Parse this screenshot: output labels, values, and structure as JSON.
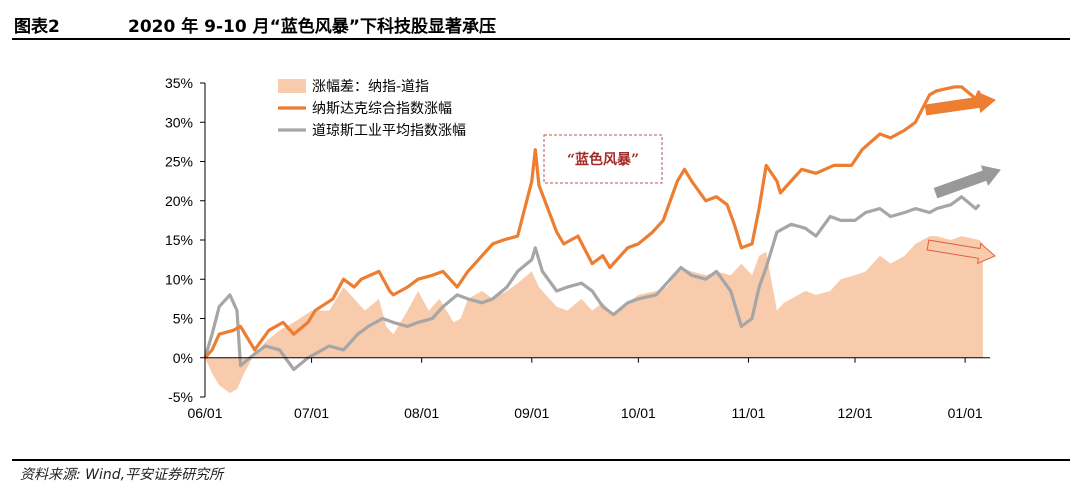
{
  "figure": {
    "number": "图表2",
    "title": "2020 年 9-10 月“蓝色风暴”下科技股显著承压",
    "source": "资料来源: Wind,平安证券研究所"
  },
  "colors": {
    "nasdaq": "#ED7D31",
    "dow": "#A6A6A6",
    "spread": "#F8CBAD",
    "annotation_border": "#C0504D",
    "annotation_text": "#A52A2A"
  },
  "chart_data": {
    "type": "line",
    "xlim": [
      "2020-06-01",
      "2021-01-08"
    ],
    "ylim": [
      -0.05,
      0.35
    ],
    "y_ticks": [
      -0.05,
      0.0,
      0.05,
      0.1,
      0.15,
      0.2,
      0.25,
      0.3,
      0.35
    ],
    "y_tick_labels": [
      "-5%",
      "0%",
      "5%",
      "10%",
      "15%",
      "20%",
      "25%",
      "30%",
      "35%"
    ],
    "x_ticks": [
      "2020-06-01",
      "2020-07-01",
      "2020-08-01",
      "2020-09-01",
      "2020-10-01",
      "2020-11-01",
      "2020-12-01",
      "2021-01-01"
    ],
    "x_tick_labels": [
      "06/01",
      "07/01",
      "08/01",
      "09/01",
      "10/01",
      "11/01",
      "12/01",
      "01/01"
    ],
    "legend": [
      "涨幅差：纳指-道指",
      "纳斯达克综合指数涨幅",
      "道琼斯工业平均指数涨幅"
    ],
    "annotation": "“蓝色风暴”",
    "series": [
      {
        "name": "涨幅差：纳指-道指",
        "kind": "area",
        "points": [
          [
            "2020-06-01",
            0.0
          ],
          [
            "2020-06-03",
            -0.02
          ],
          [
            "2020-06-05",
            -0.035
          ],
          [
            "2020-06-08",
            -0.045
          ],
          [
            "2020-06-10",
            -0.04
          ],
          [
            "2020-06-12",
            -0.02
          ],
          [
            "2020-06-15",
            0.005
          ],
          [
            "2020-06-18",
            0.02
          ],
          [
            "2020-06-22",
            0.035
          ],
          [
            "2020-06-26",
            0.045
          ],
          [
            "2020-07-01",
            0.06
          ],
          [
            "2020-07-06",
            0.06
          ],
          [
            "2020-07-10",
            0.09
          ],
          [
            "2020-07-13",
            0.075
          ],
          [
            "2020-07-16",
            0.06
          ],
          [
            "2020-07-20",
            0.075
          ],
          [
            "2020-07-22",
            0.04
          ],
          [
            "2020-07-24",
            0.03
          ],
          [
            "2020-07-28",
            0.06
          ],
          [
            "2020-07-31",
            0.085
          ],
          [
            "2020-08-03",
            0.06
          ],
          [
            "2020-08-06",
            0.075
          ],
          [
            "2020-08-10",
            0.045
          ],
          [
            "2020-08-12",
            0.05
          ],
          [
            "2020-08-14",
            0.075
          ],
          [
            "2020-08-18",
            0.085
          ],
          [
            "2020-08-21",
            0.075
          ],
          [
            "2020-08-25",
            0.085
          ],
          [
            "2020-08-28",
            0.095
          ],
          [
            "2020-09-01",
            0.11
          ],
          [
            "2020-09-03",
            0.09
          ],
          [
            "2020-09-08",
            0.065
          ],
          [
            "2020-09-11",
            0.06
          ],
          [
            "2020-09-15",
            0.075
          ],
          [
            "2020-09-18",
            0.06
          ],
          [
            "2020-09-21",
            0.07
          ],
          [
            "2020-09-24",
            0.055
          ],
          [
            "2020-09-28",
            0.07
          ],
          [
            "2020-10-01",
            0.08
          ],
          [
            "2020-10-06",
            0.085
          ],
          [
            "2020-10-09",
            0.09
          ],
          [
            "2020-10-13",
            0.115
          ],
          [
            "2020-10-16",
            0.11
          ],
          [
            "2020-10-20",
            0.105
          ],
          [
            "2020-10-23",
            0.11
          ],
          [
            "2020-10-27",
            0.105
          ],
          [
            "2020-10-30",
            0.12
          ],
          [
            "2020-11-02",
            0.105
          ],
          [
            "2020-11-04",
            0.13
          ],
          [
            "2020-11-06",
            0.135
          ],
          [
            "2020-11-09",
            0.06
          ],
          [
            "2020-11-11",
            0.07
          ],
          [
            "2020-11-13",
            0.075
          ],
          [
            "2020-11-17",
            0.085
          ],
          [
            "2020-11-20",
            0.08
          ],
          [
            "2020-11-24",
            0.085
          ],
          [
            "2020-11-27",
            0.1
          ],
          [
            "2020-12-01",
            0.105
          ],
          [
            "2020-12-04",
            0.11
          ],
          [
            "2020-12-08",
            0.13
          ],
          [
            "2020-12-11",
            0.12
          ],
          [
            "2020-12-15",
            0.13
          ],
          [
            "2020-12-18",
            0.145
          ],
          [
            "2020-12-22",
            0.155
          ],
          [
            "2020-12-24",
            0.155
          ],
          [
            "2020-12-28",
            0.15
          ],
          [
            "2020-12-31",
            0.155
          ],
          [
            "2021-01-05",
            0.15
          ],
          [
            "2021-01-06",
            0.145
          ]
        ]
      },
      {
        "name": "纳斯达克综合指数涨幅",
        "kind": "line",
        "points": [
          [
            "2020-06-01",
            0.0
          ],
          [
            "2020-06-03",
            0.01
          ],
          [
            "2020-06-05",
            0.03
          ],
          [
            "2020-06-09",
            0.035
          ],
          [
            "2020-06-11",
            0.04
          ],
          [
            "2020-06-15",
            0.01
          ],
          [
            "2020-06-19",
            0.035
          ],
          [
            "2020-06-23",
            0.045
          ],
          [
            "2020-06-26",
            0.03
          ],
          [
            "2020-06-30",
            0.045
          ],
          [
            "2020-07-02",
            0.06
          ],
          [
            "2020-07-07",
            0.075
          ],
          [
            "2020-07-10",
            0.1
          ],
          [
            "2020-07-13",
            0.09
          ],
          [
            "2020-07-15",
            0.1
          ],
          [
            "2020-07-20",
            0.11
          ],
          [
            "2020-07-23",
            0.085
          ],
          [
            "2020-07-24",
            0.08
          ],
          [
            "2020-07-28",
            0.09
          ],
          [
            "2020-07-31",
            0.1
          ],
          [
            "2020-08-04",
            0.105
          ],
          [
            "2020-08-07",
            0.11
          ],
          [
            "2020-08-11",
            0.09
          ],
          [
            "2020-08-14",
            0.11
          ],
          [
            "2020-08-18",
            0.13
          ],
          [
            "2020-08-21",
            0.145
          ],
          [
            "2020-08-24",
            0.15
          ],
          [
            "2020-08-28",
            0.155
          ],
          [
            "2020-09-01",
            0.225
          ],
          [
            "2020-09-02",
            0.265
          ],
          [
            "2020-09-03",
            0.22
          ],
          [
            "2020-09-08",
            0.16
          ],
          [
            "2020-09-10",
            0.145
          ],
          [
            "2020-09-14",
            0.155
          ],
          [
            "2020-09-18",
            0.12
          ],
          [
            "2020-09-21",
            0.13
          ],
          [
            "2020-09-23",
            0.115
          ],
          [
            "2020-09-28",
            0.14
          ],
          [
            "2020-10-01",
            0.145
          ],
          [
            "2020-10-05",
            0.16
          ],
          [
            "2020-10-08",
            0.175
          ],
          [
            "2020-10-12",
            0.225
          ],
          [
            "2020-10-14",
            0.24
          ],
          [
            "2020-10-16",
            0.225
          ],
          [
            "2020-10-20",
            0.2
          ],
          [
            "2020-10-23",
            0.205
          ],
          [
            "2020-10-26",
            0.195
          ],
          [
            "2020-10-28",
            0.17
          ],
          [
            "2020-10-30",
            0.14
          ],
          [
            "2020-11-02",
            0.145
          ],
          [
            "2020-11-04",
            0.19
          ],
          [
            "2020-11-06",
            0.245
          ],
          [
            "2020-11-09",
            0.225
          ],
          [
            "2020-11-10",
            0.21
          ],
          [
            "2020-11-12",
            0.22
          ],
          [
            "2020-11-16",
            0.24
          ],
          [
            "2020-11-20",
            0.235
          ],
          [
            "2020-11-25",
            0.245
          ],
          [
            "2020-11-30",
            0.245
          ],
          [
            "2020-12-03",
            0.265
          ],
          [
            "2020-12-08",
            0.285
          ],
          [
            "2020-12-11",
            0.28
          ],
          [
            "2020-12-15",
            0.29
          ],
          [
            "2020-12-18",
            0.3
          ],
          [
            "2020-12-22",
            0.335
          ],
          [
            "2020-12-24",
            0.34
          ],
          [
            "2020-12-29",
            0.345
          ],
          [
            "2020-12-31",
            0.345
          ],
          [
            "2021-01-04",
            0.33
          ],
          [
            "2021-01-05",
            0.34
          ]
        ]
      },
      {
        "name": "道琼斯工业平均指数涨幅",
        "kind": "line",
        "points": [
          [
            "2020-06-01",
            0.0
          ],
          [
            "2020-06-03",
            0.03
          ],
          [
            "2020-06-05",
            0.065
          ],
          [
            "2020-06-08",
            0.08
          ],
          [
            "2020-06-10",
            0.06
          ],
          [
            "2020-06-11",
            -0.01
          ],
          [
            "2020-06-15",
            0.005
          ],
          [
            "2020-06-18",
            0.015
          ],
          [
            "2020-06-22",
            0.01
          ],
          [
            "2020-06-26",
            -0.015
          ],
          [
            "2020-06-30",
            0.0
          ],
          [
            "2020-07-06",
            0.015
          ],
          [
            "2020-07-10",
            0.01
          ],
          [
            "2020-07-14",
            0.03
          ],
          [
            "2020-07-17",
            0.04
          ],
          [
            "2020-07-21",
            0.05
          ],
          [
            "2020-07-24",
            0.045
          ],
          [
            "2020-07-28",
            0.04
          ],
          [
            "2020-07-31",
            0.045
          ],
          [
            "2020-08-04",
            0.05
          ],
          [
            "2020-08-07",
            0.065
          ],
          [
            "2020-08-11",
            0.08
          ],
          [
            "2020-08-14",
            0.075
          ],
          [
            "2020-08-18",
            0.07
          ],
          [
            "2020-08-21",
            0.075
          ],
          [
            "2020-08-25",
            0.09
          ],
          [
            "2020-08-28",
            0.11
          ],
          [
            "2020-09-01",
            0.125
          ],
          [
            "2020-09-02",
            0.14
          ],
          [
            "2020-09-04",
            0.11
          ],
          [
            "2020-09-08",
            0.085
          ],
          [
            "2020-09-11",
            0.09
          ],
          [
            "2020-09-15",
            0.095
          ],
          [
            "2020-09-18",
            0.085
          ],
          [
            "2020-09-21",
            0.065
          ],
          [
            "2020-09-24",
            0.055
          ],
          [
            "2020-09-28",
            0.07
          ],
          [
            "2020-10-01",
            0.075
          ],
          [
            "2020-10-06",
            0.08
          ],
          [
            "2020-10-09",
            0.095
          ],
          [
            "2020-10-13",
            0.115
          ],
          [
            "2020-10-16",
            0.105
          ],
          [
            "2020-10-20",
            0.1
          ],
          [
            "2020-10-23",
            0.11
          ],
          [
            "2020-10-27",
            0.085
          ],
          [
            "2020-10-30",
            0.04
          ],
          [
            "2020-11-02",
            0.05
          ],
          [
            "2020-11-04",
            0.09
          ],
          [
            "2020-11-06",
            0.115
          ],
          [
            "2020-11-09",
            0.16
          ],
          [
            "2020-11-11",
            0.165
          ],
          [
            "2020-11-13",
            0.17
          ],
          [
            "2020-11-17",
            0.165
          ],
          [
            "2020-11-20",
            0.155
          ],
          [
            "2020-11-24",
            0.18
          ],
          [
            "2020-11-27",
            0.175
          ],
          [
            "2020-12-01",
            0.175
          ],
          [
            "2020-12-04",
            0.185
          ],
          [
            "2020-12-08",
            0.19
          ],
          [
            "2020-12-11",
            0.18
          ],
          [
            "2020-12-15",
            0.185
          ],
          [
            "2020-12-18",
            0.19
          ],
          [
            "2020-12-22",
            0.185
          ],
          [
            "2020-12-24",
            0.19
          ],
          [
            "2020-12-28",
            0.195
          ],
          [
            "2020-12-31",
            0.205
          ],
          [
            "2021-01-04",
            0.19
          ],
          [
            "2021-01-05",
            0.195
          ]
        ]
      }
    ]
  }
}
